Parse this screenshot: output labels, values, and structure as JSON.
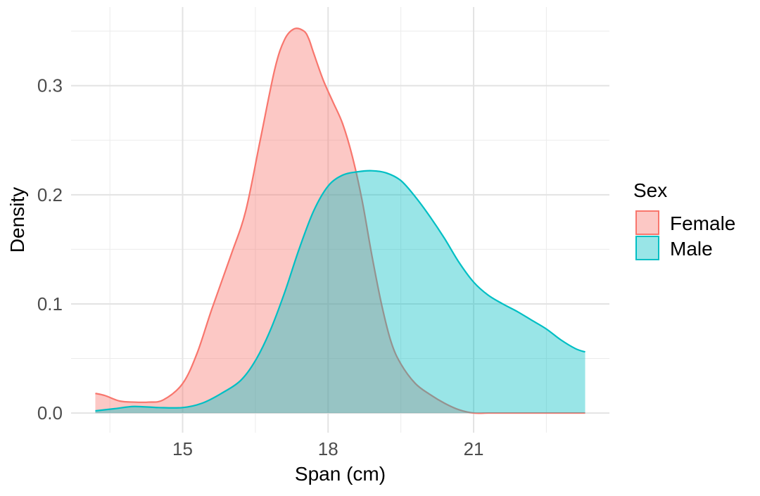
{
  "chart_data": {
    "type": "area",
    "subtype": "density",
    "xlabel": "Span (cm)",
    "ylabel": "Density",
    "xlim": [
      12.7,
      23.8
    ],
    "ylim": [
      -0.018,
      0.372
    ],
    "x_ticks": [
      15,
      18,
      21
    ],
    "x_tick_labels": [
      "15",
      "18",
      "21"
    ],
    "x_minor_gridlines": [
      13.5,
      16.5,
      19.5,
      22.5
    ],
    "y_ticks": [
      0.0,
      0.1,
      0.2,
      0.3
    ],
    "y_tick_labels": [
      "0.0",
      "0.1",
      "0.2",
      "0.3"
    ],
    "y_minor_gridlines": [
      0.05,
      0.15,
      0.25,
      0.35
    ],
    "grid": true,
    "fill_opacity": 0.4,
    "legend": {
      "title": "Sex",
      "position": "right",
      "entries": [
        "Female",
        "Male"
      ]
    },
    "series": [
      {
        "name": "Female",
        "color": "#F8766D",
        "x": [
          13.2,
          13.4,
          13.7,
          14.0,
          14.3,
          14.6,
          15.0,
          15.3,
          15.6,
          16.0,
          16.3,
          16.6,
          16.9,
          17.1,
          17.3,
          17.5,
          17.6,
          17.7,
          17.9,
          18.1,
          18.3,
          18.5,
          18.7,
          18.9,
          19.1,
          19.3,
          19.5,
          19.8,
          20.1,
          20.4,
          20.7,
          21.0,
          21.3,
          21.6,
          22.0,
          22.5,
          23.0,
          23.3
        ],
        "y": [
          0.018,
          0.016,
          0.011,
          0.01,
          0.01,
          0.012,
          0.027,
          0.055,
          0.095,
          0.145,
          0.185,
          0.25,
          0.315,
          0.342,
          0.352,
          0.35,
          0.343,
          0.33,
          0.305,
          0.285,
          0.265,
          0.235,
          0.195,
          0.145,
          0.1,
          0.065,
          0.045,
          0.027,
          0.017,
          0.009,
          0.003,
          0.0,
          0.0,
          0.0,
          0.0,
          0.0,
          0.0,
          0.0
        ]
      },
      {
        "name": "Male",
        "color": "#00BFC4",
        "x": [
          13.2,
          13.6,
          14.0,
          14.5,
          15.0,
          15.4,
          15.8,
          16.2,
          16.5,
          16.8,
          17.1,
          17.4,
          17.7,
          18.0,
          18.3,
          18.6,
          18.9,
          19.2,
          19.5,
          19.8,
          20.1,
          20.4,
          20.7,
          21.0,
          21.3,
          21.6,
          21.9,
          22.2,
          22.5,
          22.8,
          23.1,
          23.3
        ],
        "y": [
          0.002,
          0.004,
          0.006,
          0.005,
          0.005,
          0.009,
          0.018,
          0.03,
          0.048,
          0.075,
          0.11,
          0.15,
          0.185,
          0.208,
          0.218,
          0.221,
          0.222,
          0.22,
          0.213,
          0.198,
          0.18,
          0.16,
          0.138,
          0.12,
          0.108,
          0.1,
          0.093,
          0.085,
          0.077,
          0.067,
          0.059,
          0.056
        ]
      }
    ]
  }
}
